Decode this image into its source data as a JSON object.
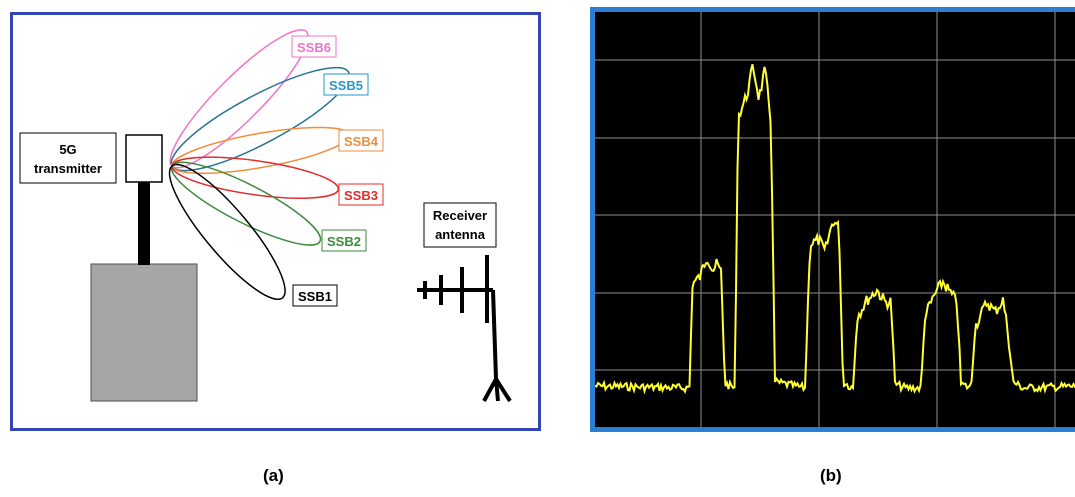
{
  "panel_a": {
    "transmitter_label_line1": "5G",
    "transmitter_label_line2": "transmitter",
    "receiver_label_line1": "Receiver",
    "receiver_label_line2": "antenna",
    "beams": [
      {
        "label": "SSB6",
        "color": "#ee74c9"
      },
      {
        "label": "SSB5",
        "color": "#2a7396"
      },
      {
        "label": "SSB4",
        "color": "#f18d3c"
      },
      {
        "label": "SSB3",
        "color": "#e52b2b"
      },
      {
        "label": "SSB2",
        "color": "#3e8a3e"
      },
      {
        "label": "SSB1",
        "color": "#000000"
      }
    ],
    "beam_label_colors": [
      "#ee74c9",
      "#2a97c9",
      "#f18d3c",
      "#e52b2b",
      "#3e8a3e",
      "#000000"
    ],
    "caption": "(a)"
  },
  "panel_b": {
    "trace_color": "#ffff33",
    "grid_color": "#909090",
    "background": "#000000",
    "caption": "(b)"
  }
}
